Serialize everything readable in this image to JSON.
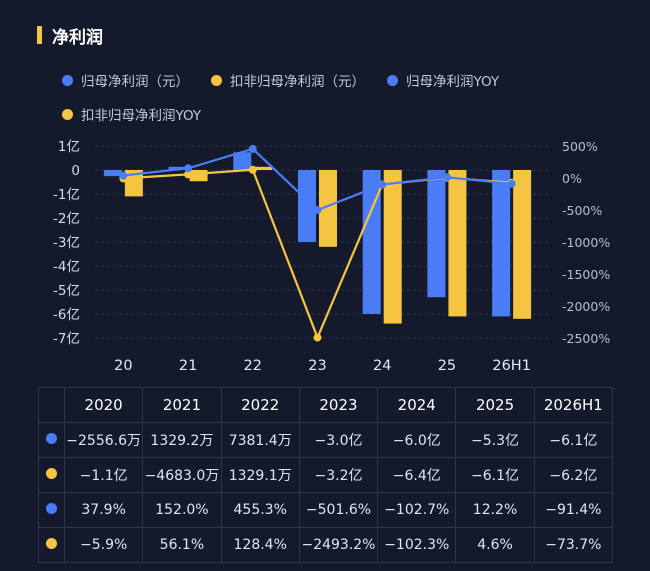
{
  "title": "净利润",
  "legend": [
    {
      "label": "归母净利润（元）",
      "color": "#4a7cf5"
    },
    {
      "label": "扣非归母净利润（元）",
      "color": "#f5c542"
    },
    {
      "label": "归母净利润YOY",
      "color": "#4a7cf5"
    },
    {
      "label": "扣非归母净利润YOY",
      "color": "#f5c542"
    }
  ],
  "chart_data": {
    "type": "bar",
    "categories": [
      "20",
      "21",
      "22",
      "23",
      "24",
      "25",
      "26H1"
    ],
    "left_axis": {
      "ticks": [
        "1亿",
        "0",
        "-1亿",
        "-2亿",
        "-3亿",
        "-4亿",
        "-5亿",
        "-6亿",
        "-7亿"
      ],
      "range": [
        -7,
        1
      ],
      "unit": "亿"
    },
    "right_axis": {
      "ticks": [
        "500%",
        "0%",
        "-500%",
        "-1000%",
        "-1500%",
        "-2000%",
        "-2500%"
      ],
      "range": [
        -2500,
        500
      ]
    },
    "series": [
      {
        "name": "归母净利润（元）",
        "kind": "bar",
        "axis": "left",
        "color": "#4a7cf5",
        "values": [
          -0.2557,
          0.1329,
          0.7381,
          -3.0,
          -6.0,
          -5.3,
          -6.1
        ]
      },
      {
        "name": "扣非归母净利润（元）",
        "kind": "bar",
        "axis": "left",
        "color": "#f5c542",
        "values": [
          -1.1,
          -0.4683,
          0.1329,
          -3.2,
          -6.4,
          -6.1,
          -6.2
        ]
      },
      {
        "name": "归母净利润YOY",
        "kind": "line",
        "axis": "right",
        "color": "#4a7cf5",
        "values": [
          37.9,
          152.0,
          455.3,
          -501.6,
          -102.7,
          12.2,
          -91.4
        ]
      },
      {
        "name": "扣非归母净利润YOY",
        "kind": "line",
        "axis": "right",
        "color": "#f5c542",
        "values": [
          -5.9,
          56.1,
          128.4,
          -2493.2,
          -102.3,
          4.6,
          -73.7
        ]
      }
    ],
    "grid": true,
    "legend_position": "top-left"
  },
  "table": {
    "headers": [
      "2020",
      "2021",
      "2022",
      "2023",
      "2024",
      "2025",
      "2026H1"
    ],
    "rows": [
      {
        "color": "#4a7cf5",
        "cells": [
          "−2556.6万",
          "1329.2万",
          "7381.4万",
          "−3.0亿",
          "−6.0亿",
          "−5.3亿",
          "−6.1亿"
        ]
      },
      {
        "color": "#f5c542",
        "cells": [
          "−1.1亿",
          "−4683.0万",
          "1329.1万",
          "−3.2亿",
          "−6.4亿",
          "−6.1亿",
          "−6.2亿"
        ]
      },
      {
        "color": "#4a7cf5",
        "cells": [
          "37.9%",
          "152.0%",
          "455.3%",
          "−501.6%",
          "−102.7%",
          "12.2%",
          "−91.4%"
        ]
      },
      {
        "color": "#f5c542",
        "cells": [
          "−5.9%",
          "56.1%",
          "128.4%",
          "−2493.2%",
          "−102.3%",
          "4.6%",
          "−73.7%"
        ]
      }
    ]
  }
}
